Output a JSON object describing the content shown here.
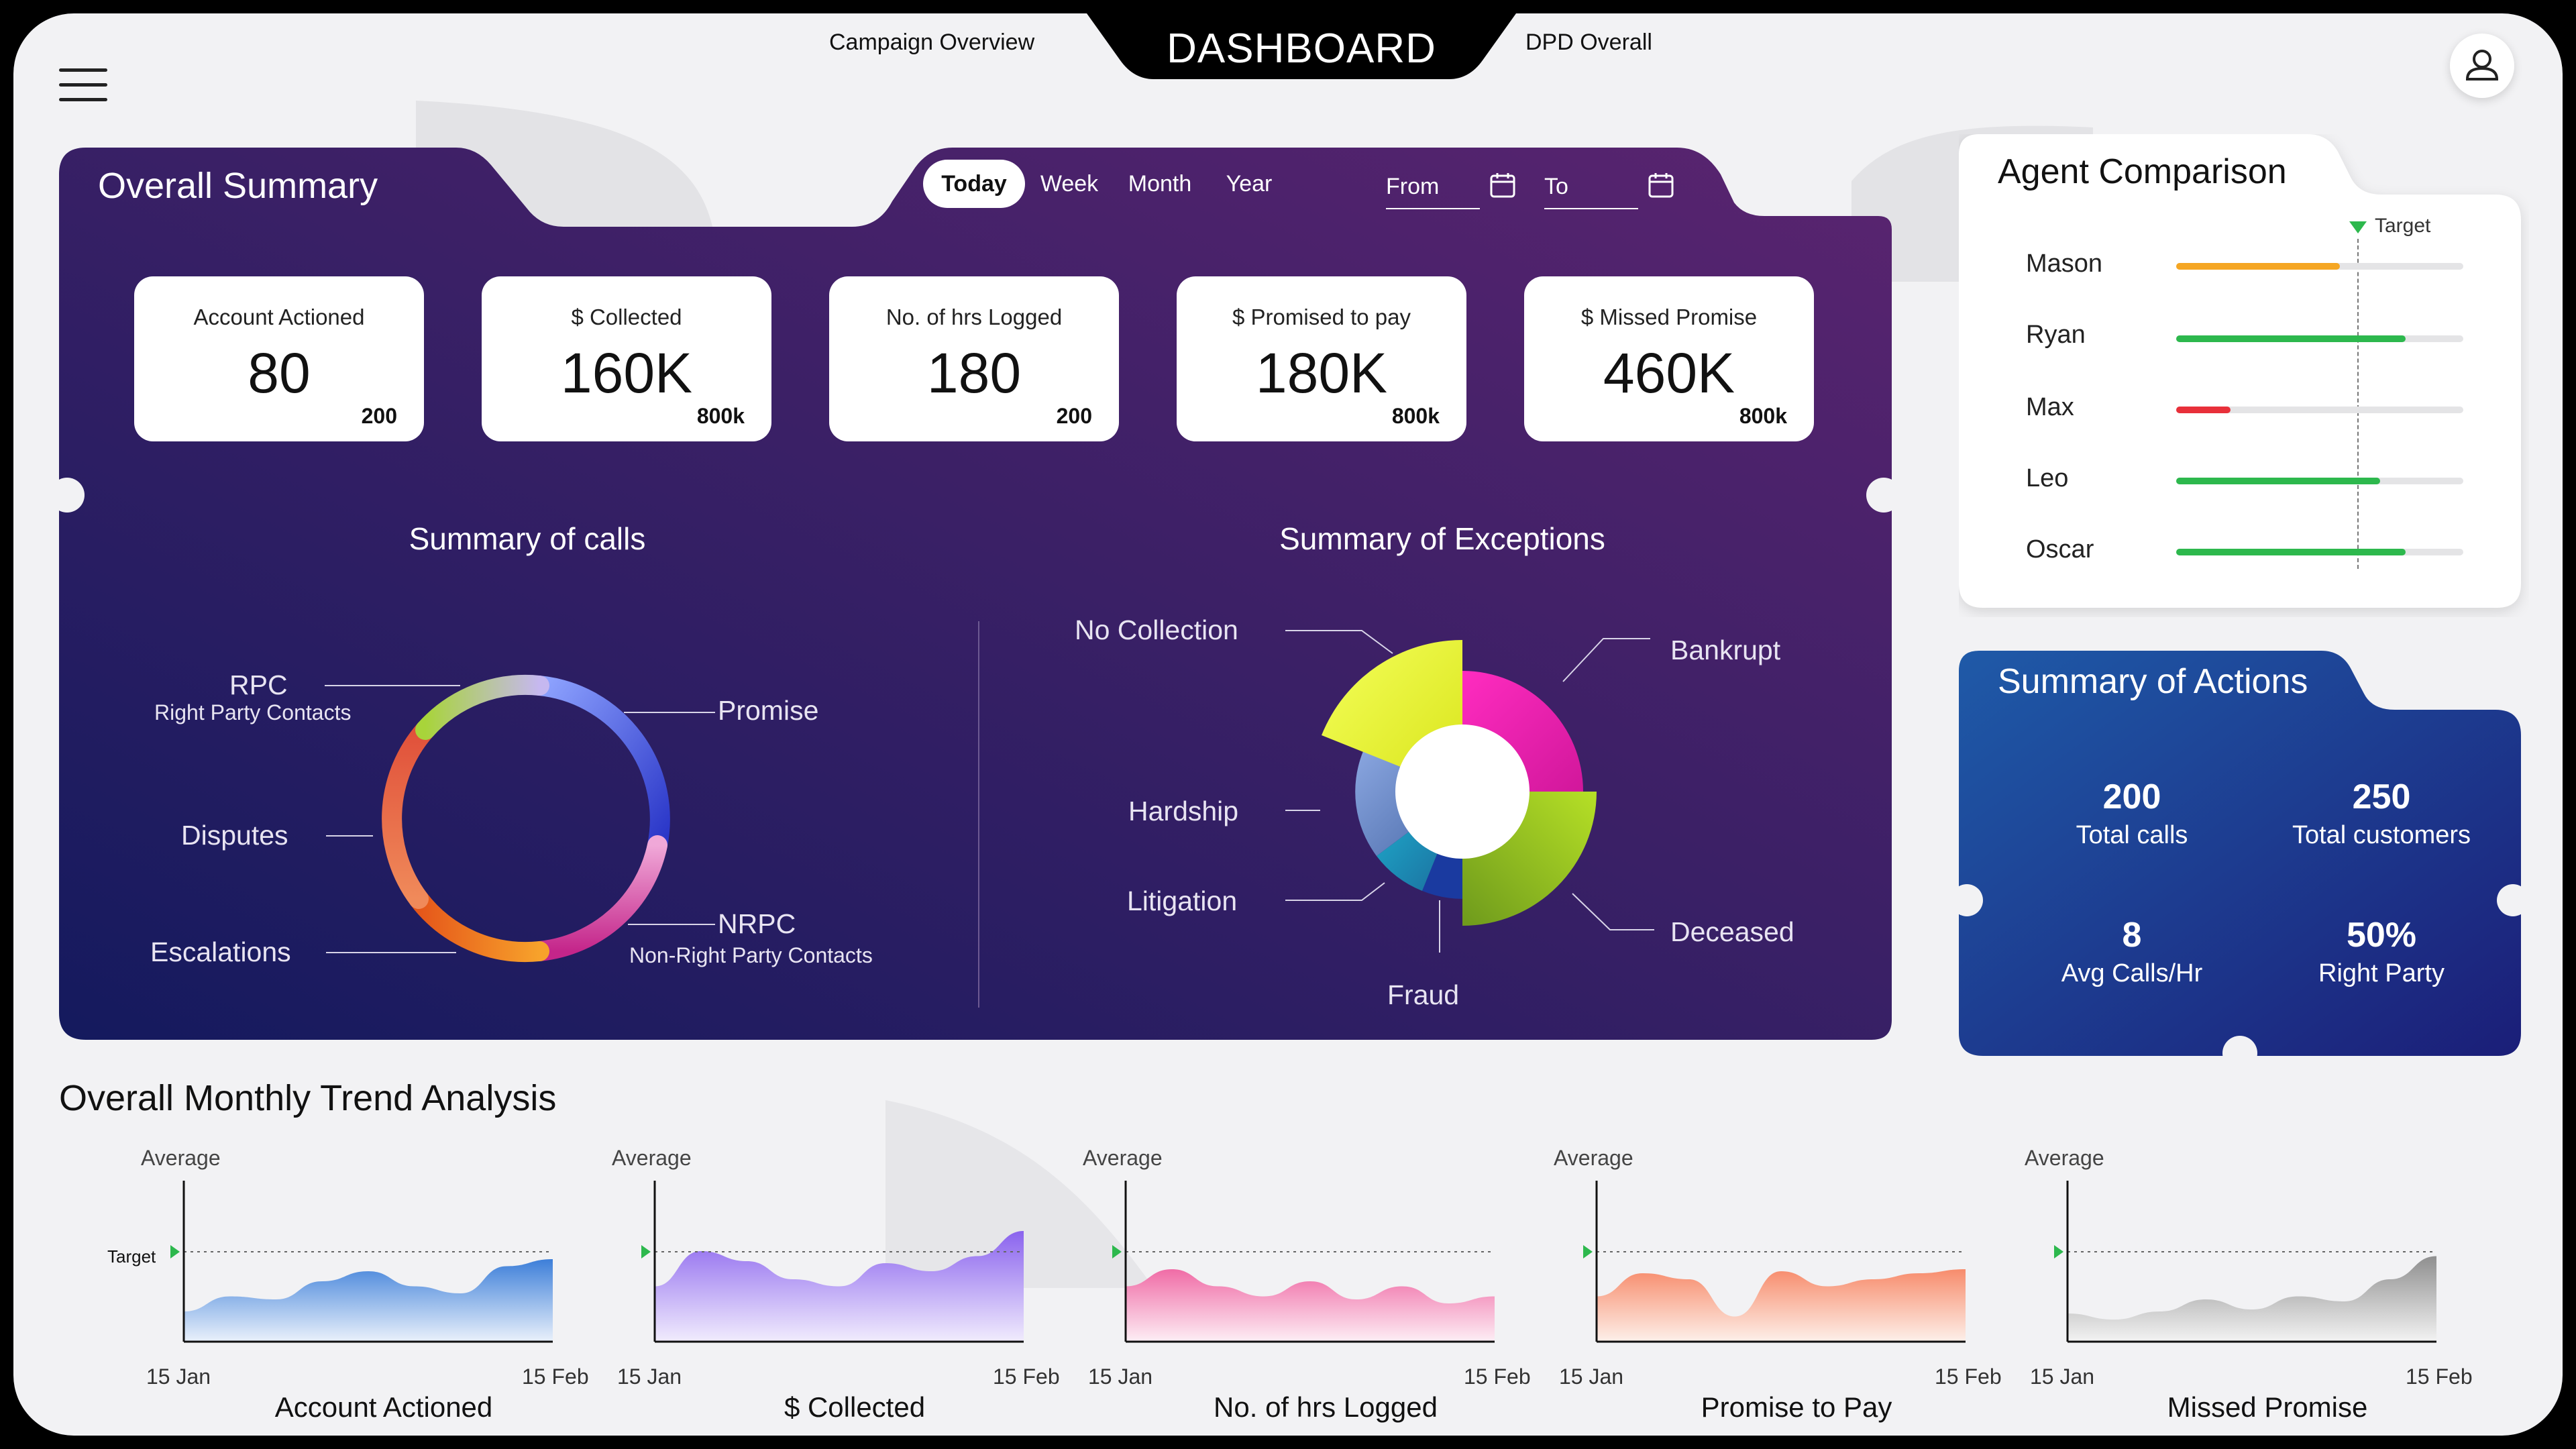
{
  "header": {
    "title": "DASHBOARD",
    "nav_left": "Campaign Overview",
    "nav_right": "DPD Overall",
    "menu_icon": "hamburger-menu-icon",
    "user_icon": "user-profile-icon"
  },
  "overall_summary": {
    "title": "Overall Summary",
    "time_filters": [
      "Today",
      "Week",
      "Month",
      "Year"
    ],
    "active_filter": "Today",
    "from_label": "From",
    "to_label": "To",
    "kpis": [
      {
        "label": "Account Actioned",
        "value": "80",
        "target": "200"
      },
      {
        "label": "$ Collected",
        "value": "160K",
        "target": "800k"
      },
      {
        "label": "No. of hrs Logged",
        "value": "180",
        "target": "200"
      },
      {
        "label": "$ Promised to pay",
        "value": "180K",
        "target": "800k"
      },
      {
        "label": "$ Missed Promise",
        "value": "460K",
        "target": "800k"
      }
    ],
    "calls_title": "Summary of calls",
    "calls_labels": {
      "rpc": "RPC",
      "rpc_sub": "Right Party Contacts",
      "promise": "Promise",
      "disputes": "Disputes",
      "nrpc": "NRPC",
      "nrpc_sub": "Non-Right Party Contacts",
      "escalations": "Escalations"
    },
    "exceptions_title": "Summary of Exceptions",
    "exception_labels": {
      "no_collection": "No Collection",
      "bankrupt": "Bankrupt",
      "hardship": "Hardship",
      "litigation": "Litigation",
      "deceased": "Deceased",
      "fraud": "Fraud"
    }
  },
  "agent_comparison": {
    "title": "Agent Comparison",
    "target_label": "Target",
    "target_fraction": 0.64,
    "agents": [
      {
        "name": "Mason",
        "fraction": 0.57,
        "color": "#f5a623"
      },
      {
        "name": "Ryan",
        "fraction": 0.8,
        "color": "#2db84d"
      },
      {
        "name": "Max",
        "fraction": 0.19,
        "color": "#e8303a"
      },
      {
        "name": "Leo",
        "fraction": 0.71,
        "color": "#2db84d"
      },
      {
        "name": "Oscar",
        "fraction": 0.8,
        "color": "#2db84d"
      }
    ]
  },
  "summary_of_actions": {
    "title": "Summary of Actions",
    "stats": [
      {
        "value": "200",
        "label": "Total calls"
      },
      {
        "value": "250",
        "label": "Total customers"
      },
      {
        "value": "8",
        "label": "Avg Calls/Hr"
      },
      {
        "value": "50%",
        "label": "Right Party"
      }
    ]
  },
  "trend": {
    "title": "Overall Monthly Trend Analysis",
    "average_label": "Average",
    "target_label": "Target",
    "start_date": "15 Jan",
    "end_date": "15 Feb",
    "charts": [
      {
        "name": "Account Actioned",
        "color_top": "#3d7fd9",
        "color_bottom": "#eaf1fb",
        "values": [
          0.3,
          0.45,
          0.42,
          0.6,
          0.7,
          0.55,
          0.48,
          0.75,
          0.82
        ]
      },
      {
        "name": "$ Collected",
        "color_top": "#8a63ee",
        "color_bottom": "#f1ecfd",
        "values": [
          0.55,
          0.9,
          0.8,
          0.62,
          0.55,
          0.78,
          0.7,
          0.85,
          1.1
        ]
      },
      {
        "name": "No. of hrs Logged",
        "color_top": "#f06ca6",
        "color_bottom": "#fdeef5",
        "values": [
          0.55,
          0.72,
          0.55,
          0.45,
          0.6,
          0.42,
          0.55,
          0.38,
          0.45
        ]
      },
      {
        "name": "Promise to Pay",
        "color_top": "#f78c6c",
        "color_bottom": "#fdf0ea",
        "values": [
          0.45,
          0.68,
          0.62,
          0.25,
          0.7,
          0.55,
          0.62,
          0.68,
          0.72
        ]
      },
      {
        "name": "Missed Promise",
        "color_top": "#8f8f8f",
        "color_bottom": "#f3f3f3",
        "values": [
          0.28,
          0.22,
          0.3,
          0.42,
          0.32,
          0.45,
          0.4,
          0.62,
          0.85
        ]
      }
    ]
  }
}
